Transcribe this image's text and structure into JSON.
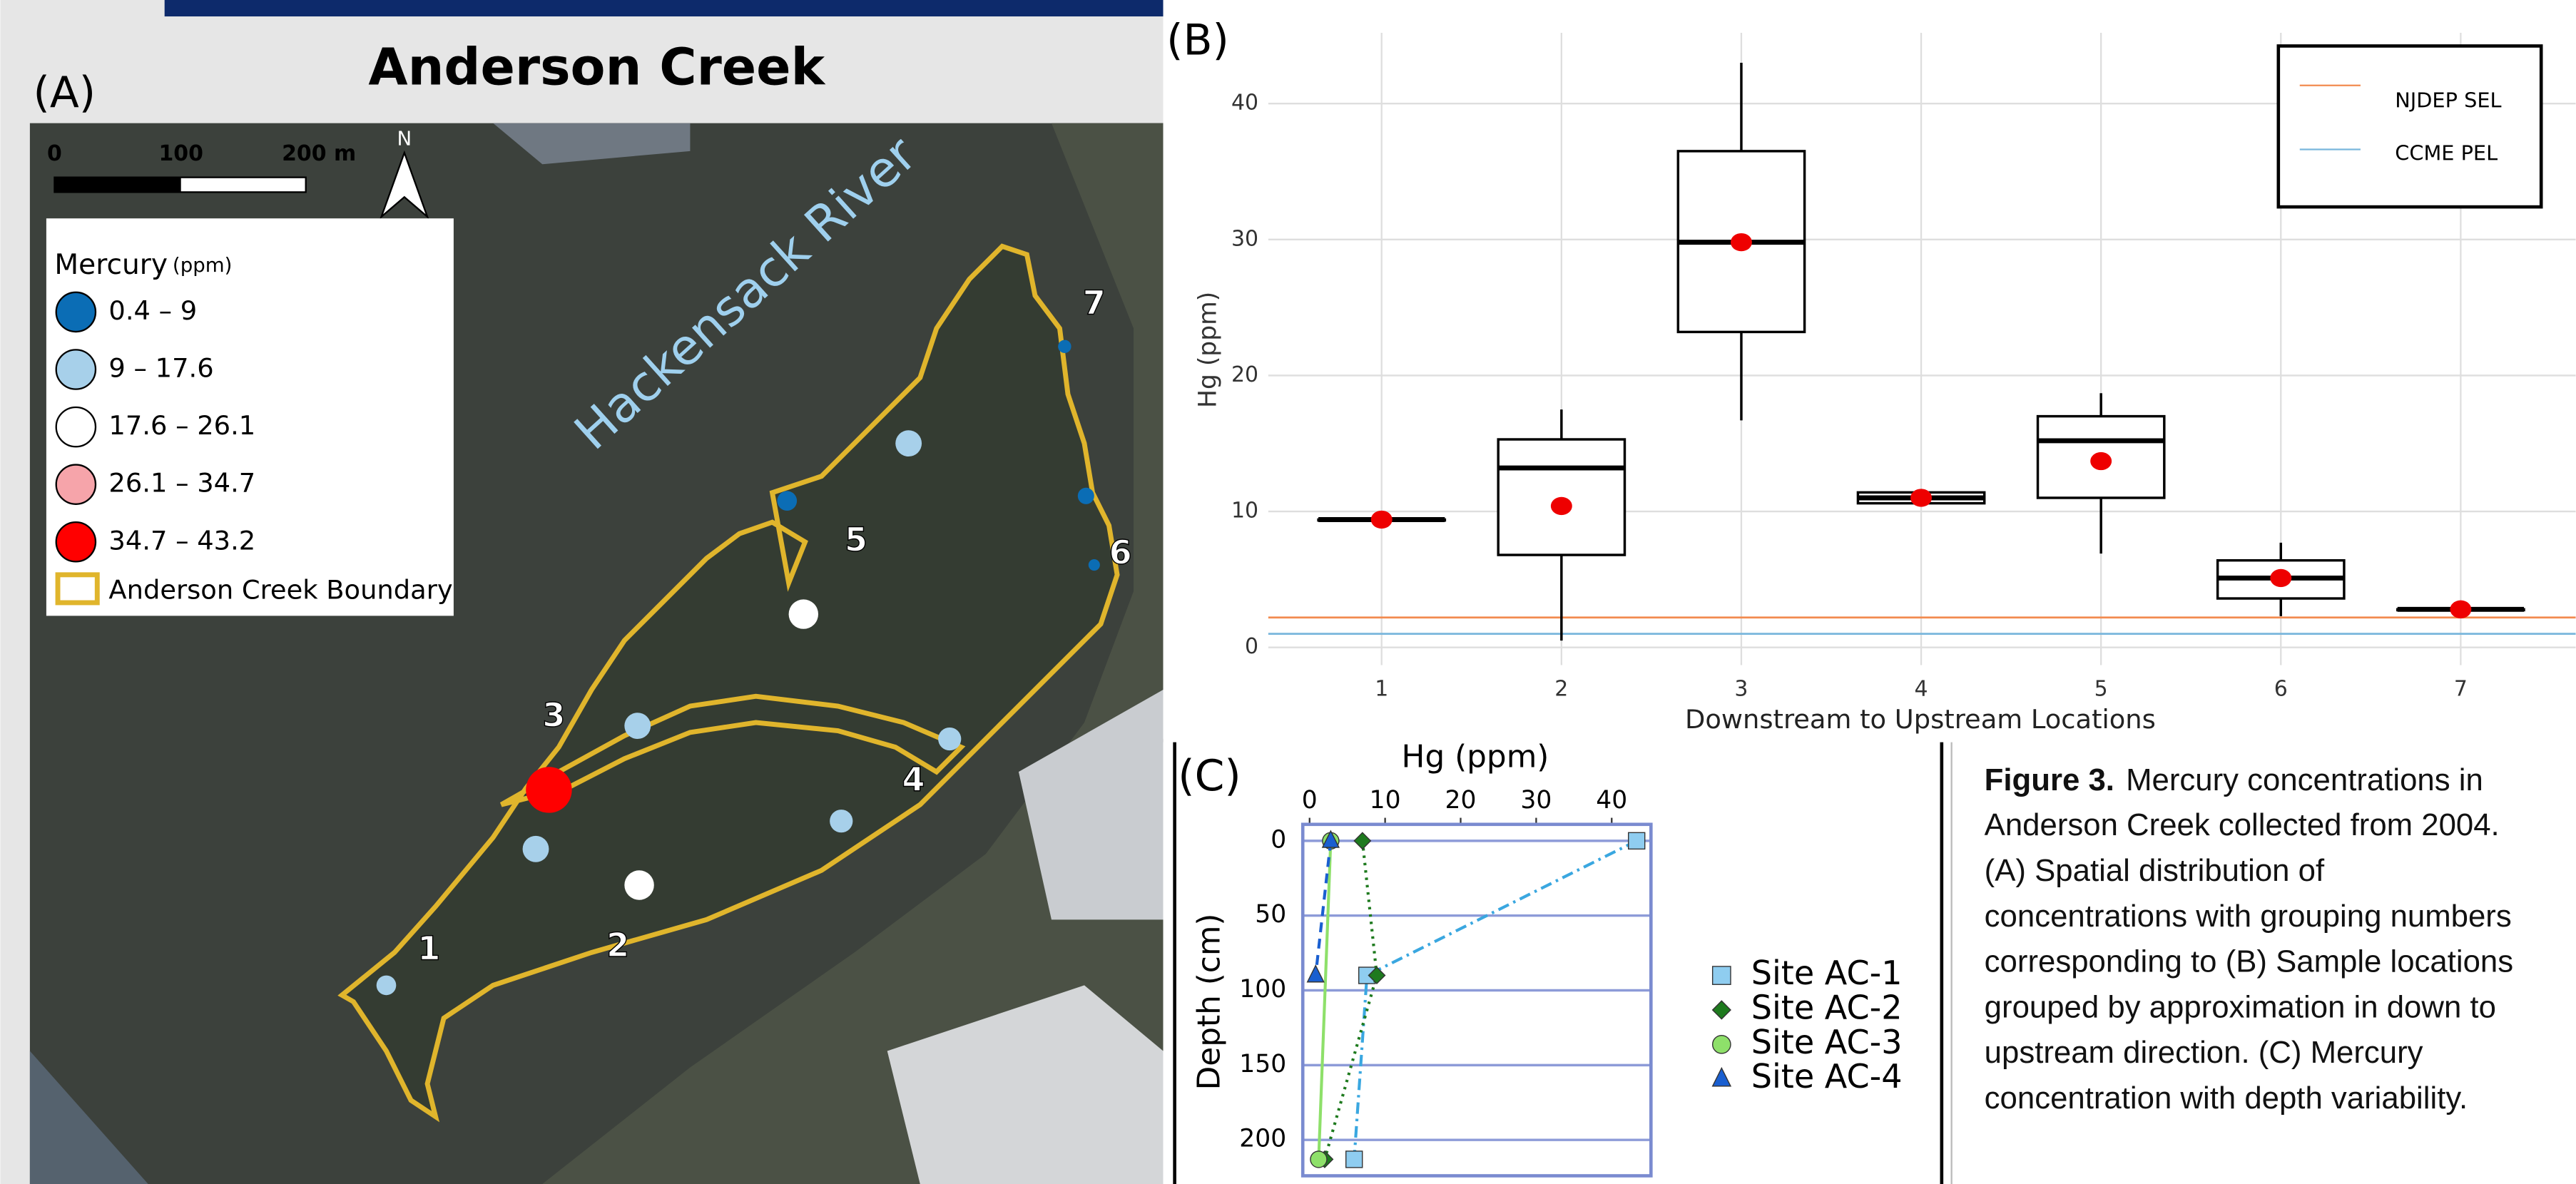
{
  "map": {
    "title": "Anderson Creek",
    "panel_label": "(A)",
    "scale_labels": [
      "0",
      "100",
      "200 m"
    ],
    "north": "N",
    "river": "Hackensack River",
    "legend": {
      "title": "Mercury",
      "unit": "(ppm)",
      "items": [
        {
          "label": "0.4 – 9",
          "color": "#0b6db5"
        },
        {
          "label": "9 – 17.6",
          "color": "#a7d0ea"
        },
        {
          "label": "17.6 – 26.1",
          "color": "#ffffff"
        },
        {
          "label": "26.1 – 34.7",
          "color": "#f6a4aa"
        },
        {
          "label": "34.7 – 43.2",
          "color": "#ff0000"
        }
      ],
      "boundary": "Anderson Creek Boundary",
      "boundary_color": "#e0b52c"
    },
    "locations": [
      "1",
      "2",
      "3",
      "4",
      "5",
      "6",
      "7"
    ]
  },
  "chart_data": [
    {
      "type": "box",
      "panel_label": "(B)",
      "x_label": "Downstream to Upstream Locations",
      "y_label": "Hg (ppm)",
      "categories": [
        "1",
        "2",
        "3",
        "4",
        "5",
        "6",
        "7"
      ],
      "boxes": [
        {
          "min": 9.4,
          "q1": 9.4,
          "median": 9.4,
          "q3": 9.4,
          "max": 9.4,
          "mean": 9.4
        },
        {
          "min": 0.5,
          "q1": 6.8,
          "median": 13.2,
          "q3": 15.3,
          "max": 17.5,
          "mean": 10.4
        },
        {
          "min": 16.7,
          "q1": 23.2,
          "median": 29.8,
          "q3": 36.5,
          "max": 43,
          "mean": 29.8
        },
        {
          "min": 10.6,
          "q1": 10.6,
          "median": 11.0,
          "q3": 11.4,
          "max": 11.5,
          "mean": 11.0
        },
        {
          "min": 6.9,
          "q1": 11.0,
          "median": 15.2,
          "q3": 17.0,
          "max": 18.7,
          "mean": 13.7
        },
        {
          "min": 2.3,
          "q1": 3.6,
          "median": 5.1,
          "q3": 6.4,
          "max": 7.7,
          "mean": 5.1
        },
        {
          "min": 2.8,
          "q1": 2.8,
          "median": 2.8,
          "q3": 2.8,
          "max": 2.8,
          "mean": 2.8
        }
      ],
      "box_color": "#000000",
      "mean_color": "#ee0000",
      "reference_lines": [
        {
          "name": "NJDEP SEL",
          "value": 2.2,
          "color": "#f28b4f"
        },
        {
          "name": "CCME PEL",
          "value": 1.0,
          "color": "#79b6dc"
        }
      ],
      "ylim": [
        -1.3,
        45.2
      ],
      "yticks": [
        0,
        10,
        20,
        30,
        40
      ],
      "grid": true
    },
    {
      "type": "profile",
      "panel_label": "(C)",
      "x_label": "Hg (ppm)",
      "y_label": "Depth (cm)",
      "xlim": [
        -0.9,
        45.2
      ],
      "xticks": [
        0,
        10,
        20,
        30,
        40
      ],
      "ylim": [
        -11,
        224
      ],
      "yticks": [
        0,
        50,
        100,
        150,
        200
      ],
      "y_inverted": true,
      "grid": true,
      "series": [
        {
          "name": "Site AC-1",
          "color": "#8fcdf0",
          "marker": "square",
          "dash": "dashdot",
          "depth": [
            0,
            90,
            213
          ],
          "values": [
            43.3,
            7.6,
            5.9
          ]
        },
        {
          "name": "Site AC-2",
          "color": "#1e7a1e",
          "marker": "diamond",
          "dash": "dotted",
          "depth": [
            0,
            90,
            213
          ],
          "values": [
            7.0,
            8.9,
            2.0
          ]
        },
        {
          "name": "Site AC-3",
          "color": "#8ee06a",
          "marker": "circle",
          "dash": "solid",
          "depth": [
            0,
            213
          ],
          "values": [
            2.8,
            1.2
          ]
        },
        {
          "name": "Site AC-4",
          "color": "#1a5fd0",
          "marker": "triangle",
          "dash": "dashed",
          "depth": [
            0,
            90
          ],
          "values": [
            2.8,
            0.8
          ]
        }
      ]
    }
  ],
  "caption": {
    "label": "Figure 3.",
    "lines": [
      "Mercury concentrations in",
      "Anderson Creek collected from 2004.",
      "(A) Spatial distribution of",
      "concentrations with grouping numbers",
      "corresponding to (B) Sample locations",
      "grouped by approximation in down to",
      "upstream direction. (C) Mercury",
      "concentration with depth variability."
    ]
  }
}
